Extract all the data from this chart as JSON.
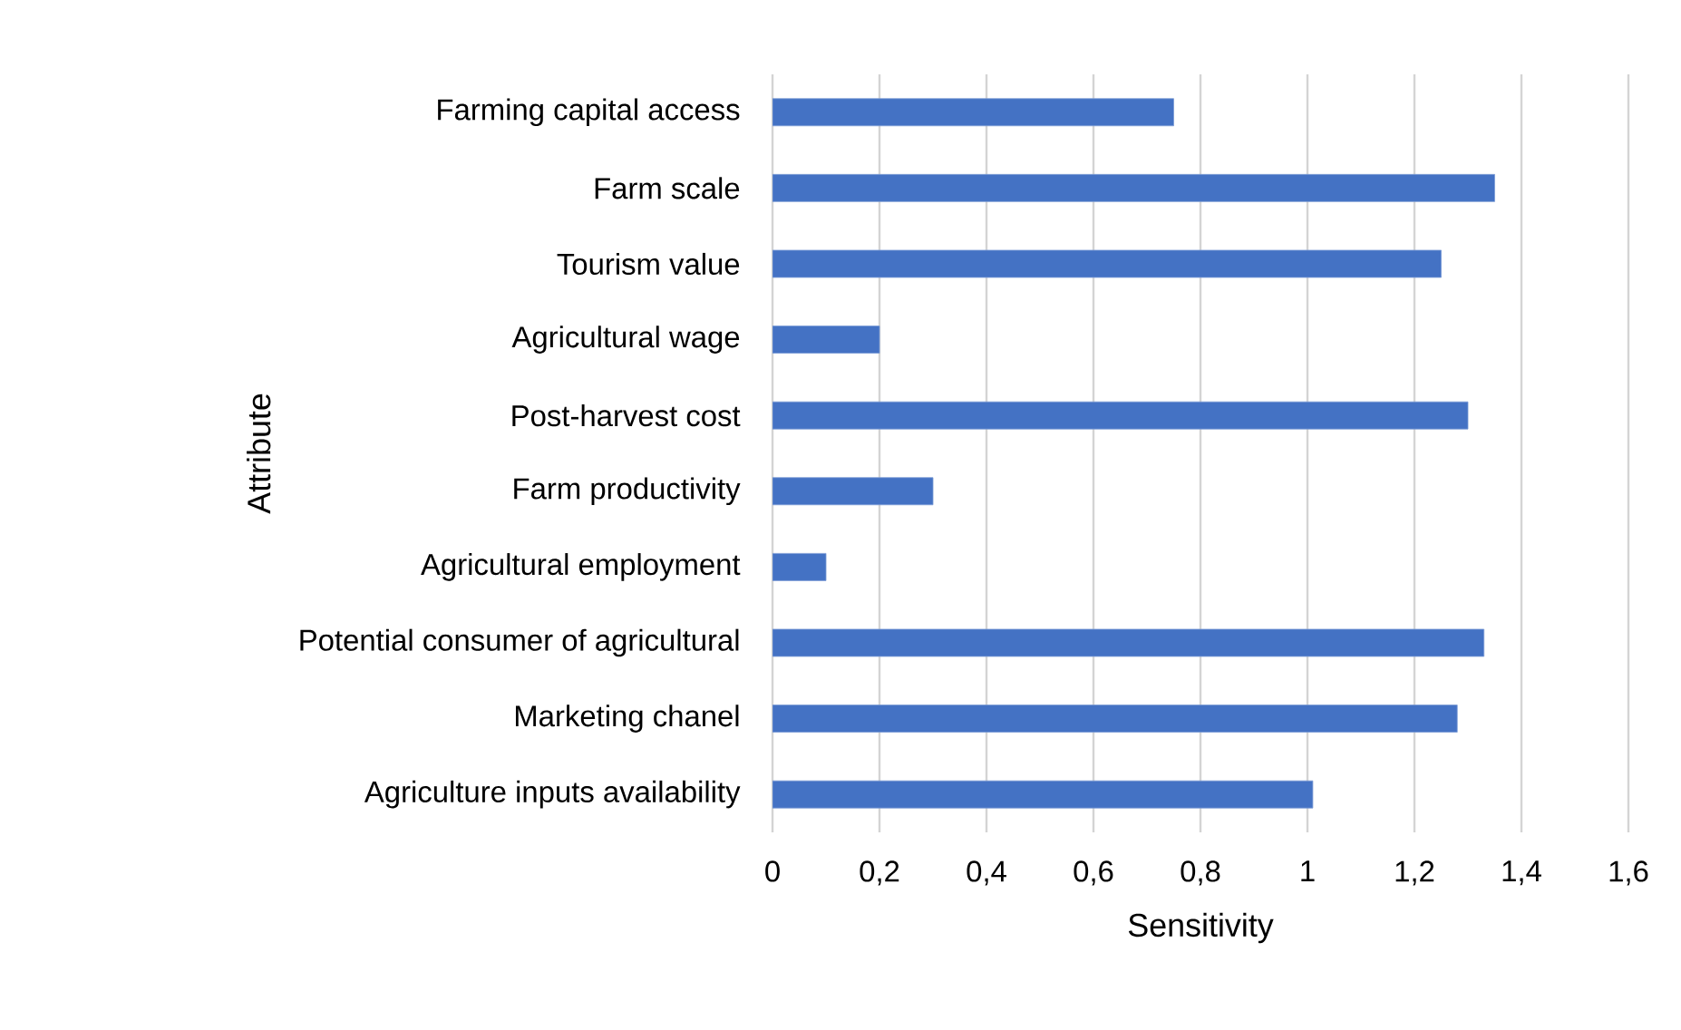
{
  "chart_data": {
    "type": "bar",
    "orientation": "horizontal",
    "xlabel": "Sensitivity",
    "ylabel": "Attribute",
    "categories": [
      "Farming capital access",
      "Farm scale",
      "Tourism value",
      "Agricultural wage",
      "Post-harvest cost",
      "Farm productivity",
      "Agricultural employment",
      "Potential consumer of agricultural",
      "Marketing chanel",
      "Agriculture inputs availability"
    ],
    "values": [
      0.75,
      1.35,
      1.25,
      0.2,
      1.3,
      0.3,
      0.1,
      1.33,
      1.28,
      1.01
    ],
    "color": "#4472c4",
    "xlim": [
      0,
      1.6
    ],
    "xticks": [
      0,
      {
        "value": 0.2,
        "label": "0,2"
      },
      {
        "value": 0.4,
        "label": "0,4"
      },
      {
        "value": 0.6,
        "label": "0,6"
      },
      {
        "value": 0.8,
        "label": "0,8"
      },
      1,
      {
        "value": 1.2,
        "label": "1,2"
      },
      {
        "value": 1.4,
        "label": "1,4"
      },
      {
        "value": 1.6,
        "label": "1,6"
      }
    ],
    "grid": "x"
  }
}
